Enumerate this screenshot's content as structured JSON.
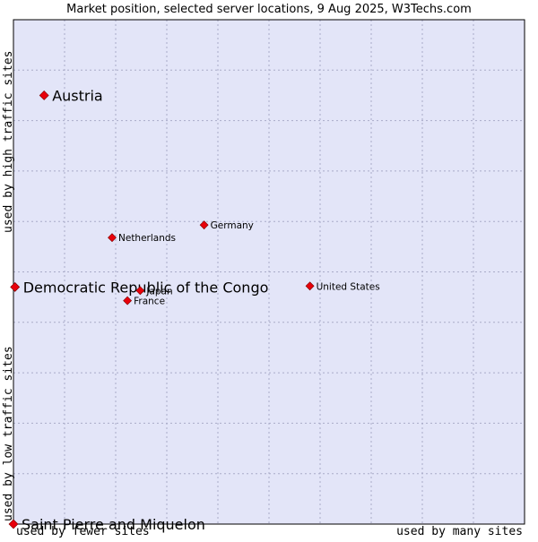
{
  "chart_data": {
    "type": "scatter",
    "title": "Market position, selected server locations, 9 Aug 2025, W3Techs.com",
    "xlabel_left": "used by fewer sites",
    "xlabel_right": "used by many sites",
    "ylabel_bottom": "used by low traffic sites",
    "ylabel_top": "used by high traffic sites",
    "xlim": [
      0,
      100
    ],
    "ylim": [
      0,
      100
    ],
    "grid": true,
    "colors": {
      "plot_bg": "#e3e5f8",
      "grid": "#a9abc8",
      "point": "#e8000b",
      "axis": "#000000"
    },
    "points": [
      {
        "name": "Austria",
        "x": 6.0,
        "y": 85.0,
        "highlight": true
      },
      {
        "name": "Democratic Republic of the Congo",
        "x": 0.3,
        "y": 47.0,
        "highlight": true
      },
      {
        "name": "Saint Pierre and Miquelon",
        "x": 0.0,
        "y": 0.0,
        "highlight": true
      },
      {
        "name": "Germany",
        "x": 37.3,
        "y": 59.3,
        "highlight": false
      },
      {
        "name": "Netherlands",
        "x": 19.3,
        "y": 56.8,
        "highlight": false
      },
      {
        "name": "United States",
        "x": 58.0,
        "y": 47.2,
        "highlight": false
      },
      {
        "name": "Japan",
        "x": 24.8,
        "y": 46.3,
        "highlight": false
      },
      {
        "name": "France",
        "x": 22.3,
        "y": 44.3,
        "highlight": false
      }
    ]
  }
}
